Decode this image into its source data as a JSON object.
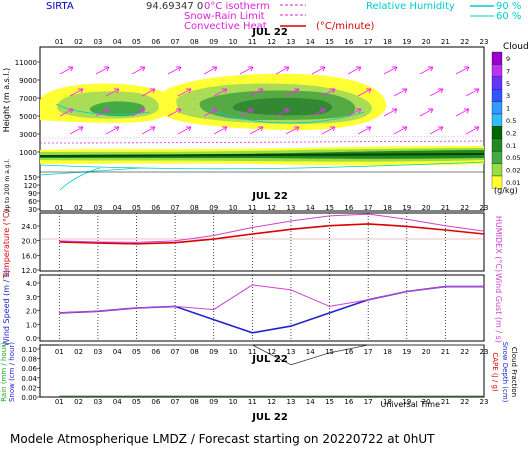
{
  "header": {
    "site": "SIRTA",
    "coords": "94.69347 0",
    "legend_isotherm": "0°C isotherm",
    "legend_snow": "Snow-Rain Limit",
    "legend_heat": "Convective Heat",
    "legend_heat_unit": "(°C/minute)",
    "legend_rh": "Relative Humidity",
    "rh_90": "90 %",
    "rh_60": "60 %"
  },
  "date_label": "JUL 22",
  "hours": [
    "01",
    "02",
    "03",
    "04",
    "05",
    "06",
    "07",
    "08",
    "09",
    "10",
    "11",
    "12",
    "13",
    "14",
    "15",
    "16",
    "17",
    "18",
    "19",
    "20",
    "21",
    "22",
    "23"
  ],
  "panel_top": {
    "ylabel": "Height (m a.s.l.)",
    "ylabel_low": "Up to 200 m a.g.l.",
    "yticks": [
      "11000",
      "9000",
      "7000",
      "5000",
      "3000",
      "1000",
      "150",
      "120",
      "90",
      "60",
      "30"
    ],
    "clouds_title": "Clouds",
    "clouds_ticks": [
      "9",
      "7",
      "5",
      "3",
      "1",
      "0.5",
      "0.2",
      "0.1",
      "0.05",
      "0.02",
      "0.01"
    ],
    "clouds_unit": "(g/kg)",
    "colors": {
      "high": "#9900cc",
      "mid": "#3399ff",
      "low": "#33aa33",
      "dark": "#006600",
      "yellow": "#ffff00",
      "lime": "#99dd33"
    }
  },
  "temp_panel": {
    "ylabel": "Temperature (°C)",
    "ylabel_right": "HUMIDEX (°C)",
    "yticks": [
      "24.0",
      "20.0",
      "16.0",
      "12.0"
    ]
  },
  "wind_panel": {
    "ylabel": "Wind Speed (m / s)",
    "ylabel_right": "Wind Gust (m / s)",
    "yticks": [
      "4.0",
      "3.0",
      "2.0",
      "1.0",
      "0.0"
    ]
  },
  "rain_panel": {
    "ylabel_left1": "Rain (mm / hour)",
    "ylabel_left2": "Snow (cm / hour)",
    "ylabel_right1": "CAPE (J / g)",
    "ylabel_right2": "Snow Depth (cm)",
    "ylabel_right3": "Cloud Fraction",
    "yticks": [
      "0.10",
      "0.08",
      "0.06",
      "0.04",
      "0.02",
      "0.00"
    ],
    "xlabel": "Universal Time"
  },
  "footer": "Modele Atmospherique LMDZ / Forecast starting on 20220722 at 0hUT",
  "chart_data": [
    {
      "type": "line",
      "title": "Temperature",
      "x": [
        1,
        3,
        5,
        7,
        9,
        11,
        13,
        15,
        17,
        19,
        21,
        23
      ],
      "series": [
        {
          "name": "Temperature",
          "color": "#dd0000",
          "values": [
            19.0,
            18.7,
            18.5,
            18.8,
            19.8,
            21.2,
            22.5,
            23.5,
            24.0,
            23.3,
            22.3,
            21.2
          ]
        },
        {
          "name": "HUMIDEX",
          "color": "#cc44cc",
          "values": [
            19.3,
            19.0,
            18.9,
            19.3,
            20.8,
            23.0,
            24.8,
            26.2,
            26.7,
            25.3,
            23.5,
            22.0
          ]
        }
      ],
      "ylim": [
        11,
        27
      ]
    },
    {
      "type": "line",
      "title": "Wind",
      "x": [
        1,
        3,
        5,
        7,
        9,
        11,
        13,
        15,
        17,
        19,
        21,
        23
      ],
      "series": [
        {
          "name": "Wind Speed",
          "color": "#2222cc",
          "values": [
            1.7,
            1.8,
            2.0,
            2.1,
            1.3,
            0.5,
            0.9,
            1.7,
            2.5,
            3.0,
            3.3,
            3.3
          ]
        },
        {
          "name": "Wind Gust",
          "color": "#cc44cc",
          "values": [
            1.7,
            1.8,
            2.0,
            2.1,
            1.9,
            3.4,
            3.1,
            2.1,
            2.5,
            3.0,
            3.3,
            3.3
          ]
        }
      ],
      "ylim": [
        0,
        4
      ]
    },
    {
      "type": "line",
      "title": "Cloud Fraction",
      "x": [
        1,
        3,
        5,
        7,
        9,
        11,
        13,
        15,
        17,
        19,
        21,
        23
      ],
      "series": [
        {
          "name": "Cloud Fraction",
          "color": "#444444",
          "values": [
            1,
            1,
            1,
            1,
            1,
            1,
            0.62,
            0.85,
            1,
            1,
            1,
            1
          ]
        },
        {
          "name": "Rain",
          "color": "#22aa22",
          "values": [
            0,
            0,
            0,
            0,
            0,
            0,
            0,
            0,
            0,
            0,
            0,
            0
          ]
        }
      ],
      "ylim": [
        0,
        0.1
      ]
    }
  ]
}
